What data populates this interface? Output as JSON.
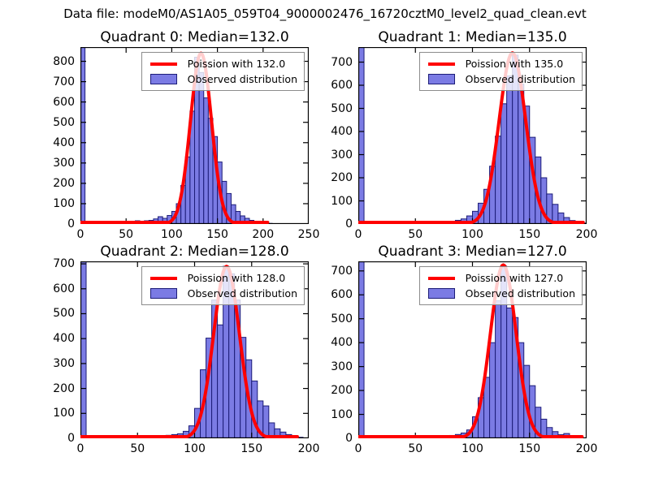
{
  "figure": {
    "title": "Data file: modeM0/AS1A05_059T04_9000002476_16720cztM0_level2_quad_clean.evt"
  },
  "colors": {
    "bar_fill": "#7b7be4",
    "bar_edge": "#1c1c78",
    "curve": "#ff0000",
    "axis": "#000000",
    "legend_border": "#8c8c8c",
    "text": "#000000"
  },
  "chart_data": [
    {
      "type": "bar",
      "subtype": "histogram_with_poisson_fit",
      "title": "Quadrant 0: Median=132.0",
      "median": 132.0,
      "legend": [
        "Poission with 132.0",
        "Observed distribution"
      ],
      "legend_position": "upper right",
      "xlim": [
        0,
        250
      ],
      "ylim": [
        0,
        870
      ],
      "xticks": [
        0,
        50,
        100,
        150,
        200,
        250
      ],
      "yticks": [
        0,
        100,
        200,
        300,
        400,
        500,
        600,
        700,
        800
      ],
      "bin_width": 5,
      "bin_start": 0,
      "first_bin_clipped": true,
      "bar_values": [
        872,
        2,
        1,
        1,
        2,
        2,
        5,
        8,
        14,
        10,
        13,
        14,
        16,
        14,
        16,
        18,
        25,
        36,
        28,
        42,
        62,
        100,
        190,
        330,
        555,
        820,
        745,
        620,
        520,
        430,
        305,
        210,
        150,
        95,
        62,
        40,
        28,
        18,
        12,
        8,
        5,
        3,
        0,
        0,
        0,
        0,
        0,
        0,
        0,
        0
      ],
      "fit_curve": {
        "shape": "gaussian_approx_of_poisson",
        "mean": 132.0,
        "sigma": 11.49,
        "peak": 840,
        "x_end": 205
      }
    },
    {
      "type": "bar",
      "subtype": "histogram_with_poisson_fit",
      "title": "Quadrant 1: Median=135.0",
      "median": 135.0,
      "legend": [
        "Poission with 135.0",
        "Observed distribution"
      ],
      "legend_position": "upper right",
      "xlim": [
        0,
        200
      ],
      "ylim": [
        0,
        765
      ],
      "xticks": [
        0,
        50,
        100,
        150,
        200
      ],
      "yticks": [
        0,
        100,
        200,
        300,
        400,
        500,
        600,
        700
      ],
      "bin_width": 5,
      "bin_start": 0,
      "first_bin_clipped": true,
      "bar_values": [
        767,
        2,
        1,
        1,
        1,
        1,
        1,
        1,
        1,
        2,
        2,
        2,
        3,
        3,
        4,
        8,
        12,
        16,
        22,
        35,
        55,
        90,
        150,
        250,
        380,
        520,
        640,
        730,
        605,
        510,
        375,
        290,
        200,
        130,
        85,
        48,
        28,
        15,
        8,
        4
      ],
      "fit_curve": {
        "shape": "gaussian_approx_of_poisson",
        "mean": 135.0,
        "sigma": 11.62,
        "peak": 740,
        "x_end": 197
      }
    },
    {
      "type": "bar",
      "subtype": "histogram_with_poisson_fit",
      "title": "Quadrant 2: Median=128.0",
      "median": 128.0,
      "legend": [
        "Poission with 128.0",
        "Observed distribution"
      ],
      "legend_position": "upper right",
      "xlim": [
        0,
        200
      ],
      "ylim": [
        0,
        710
      ],
      "xticks": [
        0,
        50,
        100,
        150,
        200
      ],
      "yticks": [
        0,
        100,
        200,
        300,
        400,
        500,
        600,
        700
      ],
      "bin_width": 5,
      "bin_start": 0,
      "first_bin_clipped": true,
      "bar_values": [
        712,
        2,
        1,
        1,
        1,
        1,
        1,
        2,
        2,
        3,
        4,
        5,
        6,
        8,
        10,
        12,
        15,
        18,
        28,
        50,
        120,
        275,
        402,
        555,
        455,
        690,
        660,
        555,
        405,
        315,
        230,
        150,
        130,
        62,
        38,
        25,
        15,
        8,
        4,
        0
      ],
      "fit_curve": {
        "shape": "gaussian_approx_of_poisson",
        "mean": 128.0,
        "sigma": 11.31,
        "peak": 690,
        "x_end": 190
      }
    },
    {
      "type": "bar",
      "subtype": "histogram_with_poisson_fit",
      "title": "Quadrant 3: Median=127.0",
      "median": 127.0,
      "legend": [
        "Poission with 127.0",
        "Observed distribution"
      ],
      "legend_position": "upper right",
      "xlim": [
        0,
        200
      ],
      "ylim": [
        0,
        740
      ],
      "xticks": [
        0,
        50,
        100,
        150,
        200
      ],
      "yticks": [
        0,
        100,
        200,
        300,
        400,
        500,
        600,
        700
      ],
      "bin_width": 5,
      "bin_start": 0,
      "first_bin_clipped": true,
      "bar_values": [
        742,
        2,
        1,
        1,
        1,
        1,
        1,
        1,
        1,
        2,
        2,
        2,
        3,
        5,
        7,
        9,
        12,
        16,
        22,
        35,
        90,
        170,
        255,
        400,
        575,
        720,
        545,
        505,
        400,
        305,
        220,
        130,
        80,
        45,
        28,
        15,
        20,
        6,
        3,
        0
      ],
      "fit_curve": {
        "shape": "gaussian_approx_of_poisson",
        "mean": 127.0,
        "sigma": 11.27,
        "peak": 725,
        "x_end": 196
      }
    }
  ]
}
